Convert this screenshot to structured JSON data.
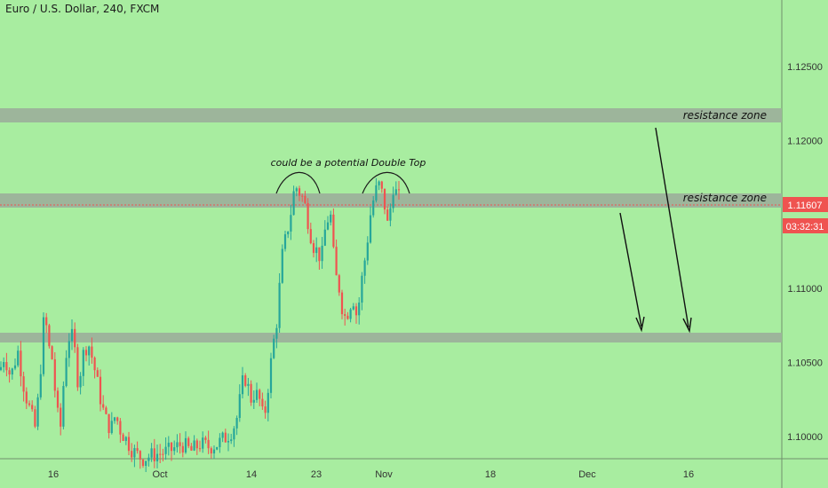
{
  "header": {
    "title": "Euro / U.S. Dollar, 240, FXCM"
  },
  "price_axis": {
    "ticks": [
      "1.12500",
      "1.12000",
      "1.11000",
      "1.10500",
      "1.10000"
    ],
    "last_price_label": "1.11607",
    "countdown_label": "03:32:31"
  },
  "time_axis": {
    "ticks": [
      "16",
      "Oct",
      "14",
      "23",
      "Nov",
      "18",
      "Dec",
      "16"
    ]
  },
  "annotations": {
    "resistance_upper": "resistance zone",
    "resistance_lower": "resistance zone",
    "double_top": "could be a potential Double Top"
  },
  "colors": {
    "background": "#a8eda0",
    "bull": "#26a69a",
    "bear": "#ef5350",
    "zone": "#9db59b",
    "price_label": "#ef5350"
  },
  "chart_data": {
    "type": "candlestick",
    "symbol": "EURUSD",
    "timeframe": "240",
    "ylim": [
      1.0985,
      1.1295
    ],
    "last_price": 1.11607,
    "zones": [
      {
        "label": "resistance zone",
        "low": 1.1218,
        "high": 1.1228
      },
      {
        "label": "resistance zone",
        "low": 1.1161,
        "high": 1.1171
      },
      {
        "label": "",
        "low": 1.1068,
        "high": 1.1074
      }
    ],
    "path": [
      [
        0,
        1.1045
      ],
      [
        5,
        1.1055
      ],
      [
        12,
        1.104
      ],
      [
        20,
        1.1058
      ],
      [
        28,
        1.103
      ],
      [
        35,
        1.1015
      ],
      [
        40,
        1.1005
      ],
      [
        45,
        1.104
      ],
      [
        50,
        1.1085
      ],
      [
        55,
        1.106
      ],
      [
        60,
        1.105
      ],
      [
        63,
        1.102
      ],
      [
        68,
        1.1005
      ],
      [
        72,
        1.104
      ],
      [
        76,
        1.1065
      ],
      [
        80,
        1.107
      ],
      [
        85,
        1.1055
      ],
      [
        88,
        1.1035
      ],
      [
        95,
        1.106
      ],
      [
        100,
        1.1062
      ],
      [
        105,
        1.105
      ],
      [
        110,
        1.1035
      ],
      [
        115,
        1.102
      ],
      [
        120,
        1.101
      ],
      [
        125,
        1.1005
      ],
      [
        130,
        1.1015
      ],
      [
        135,
        1.1005
      ],
      [
        140,
        1.1
      ],
      [
        145,
        1.0995
      ],
      [
        150,
        1.099
      ],
      [
        160,
        1.0985
      ],
      [
        175,
        1.0988
      ],
      [
        190,
        1.099
      ],
      [
        205,
        1.0995
      ],
      [
        215,
        1.099
      ],
      [
        225,
        1.0995
      ],
      [
        235,
        1.0993
      ],
      [
        245,
        1.0995
      ],
      [
        255,
        1.1
      ],
      [
        262,
        1.1005
      ],
      [
        268,
        1.1015
      ],
      [
        272,
        1.1035
      ],
      [
        277,
        1.104
      ],
      [
        282,
        1.1025
      ],
      [
        287,
        1.103
      ],
      [
        292,
        1.1025
      ],
      [
        297,
        1.101
      ],
      [
        302,
        1.1035
      ],
      [
        307,
        1.106
      ],
      [
        312,
        1.108
      ],
      [
        317,
        1.112
      ],
      [
        322,
        1.1135
      ],
      [
        327,
        1.115
      ],
      [
        332,
        1.117
      ],
      [
        337,
        1.1165
      ],
      [
        342,
        1.116
      ],
      [
        347,
        1.1145
      ],
      [
        352,
        1.113
      ],
      [
        357,
        1.1125
      ],
      [
        362,
        1.112
      ],
      [
        367,
        1.1145
      ],
      [
        372,
        1.115
      ],
      [
        377,
        1.111
      ],
      [
        382,
        1.11
      ],
      [
        387,
        1.108
      ],
      [
        392,
        1.1085
      ],
      [
        397,
        1.1095
      ],
      [
        402,
        1.108
      ],
      [
        407,
        1.1105
      ],
      [
        412,
        1.1125
      ],
      [
        417,
        1.115
      ],
      [
        422,
        1.1165
      ],
      [
        427,
        1.117
      ],
      [
        432,
        1.116
      ],
      [
        437,
        1.114
      ],
      [
        442,
        1.117
      ],
      [
        447,
        1.1163
      ],
      [
        450,
        1.116
      ]
    ],
    "xaxis_labels": [
      "16",
      "Oct",
      "14",
      "23",
      "Nov",
      "18",
      "Dec",
      "16"
    ],
    "yaxis_labels": [
      "1.12500",
      "1.12000",
      "1.11000",
      "1.10500",
      "1.10000"
    ]
  }
}
